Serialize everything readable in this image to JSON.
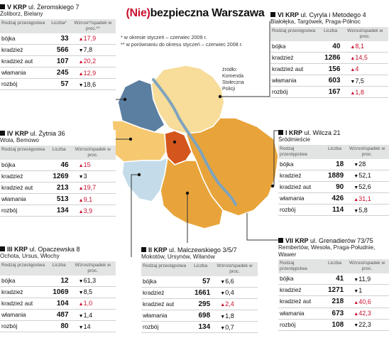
{
  "title_prefix": "(Nie)",
  "title_rest": "bezpieczna Warszawa",
  "notes": [
    "* w okresie styczeń – czerwiec 2009 r.",
    "** w porównaniu do okresu styczeń – czerwiec 2008 r."
  ],
  "source": [
    "źródło:",
    "Komenda",
    "Stołeczna",
    "Policji"
  ],
  "headers": {
    "type": "Rodzaj przestępstwa",
    "count": "Liczba*",
    "count_plain": "Liczba",
    "change": "Wzrost*/spadek w proc.**",
    "change_plain": "Wzrost/spadek w proc."
  },
  "colors": {
    "v_krp": "#5b7fa0",
    "vi_krp": "#f7dc9a",
    "iv_krp": "#f6c870",
    "i_krp": "#d4561c",
    "iii_krp": "#c4dcea",
    "ii_krp": "#e8a43a",
    "vii_krp": "#e8a43a",
    "vistula": "#7ea3bd",
    "increase": "#c8102e"
  },
  "panels": [
    {
      "key": "v",
      "district": "V KRP",
      "address": "ul. Żeromskiego 7",
      "areas": "Żoliborz, Bielany",
      "rows": [
        {
          "type": "bójka",
          "count": "33",
          "dir": "up",
          "change": "17,9"
        },
        {
          "type": "kradzież",
          "count": "566",
          "dir": "dn",
          "change": "7,8"
        },
        {
          "type": "kradzież aut",
          "count": "107",
          "dir": "up",
          "change": "20,2"
        },
        {
          "type": "włamania",
          "count": "245",
          "dir": "up",
          "change": "12,9"
        },
        {
          "type": "rozbój",
          "count": "57",
          "dir": "dn",
          "change": "18,6"
        }
      ]
    },
    {
      "key": "vi",
      "district": "VI KRP",
      "address": "ul. Cyryla i Metodego 4",
      "areas": "Białołęka, Targówek, Praga-Północ",
      "rows": [
        {
          "type": "bójka",
          "count": "40",
          "dir": "up",
          "change": "8,1"
        },
        {
          "type": "kradzież",
          "count": "1286",
          "dir": "up",
          "change": "14,5"
        },
        {
          "type": "kradzież aut",
          "count": "156",
          "dir": "up",
          "change": "4"
        },
        {
          "type": "włamania",
          "count": "603",
          "dir": "dn",
          "change": "7,5"
        },
        {
          "type": "rozbój",
          "count": "167",
          "dir": "up",
          "change": "1,8"
        }
      ]
    },
    {
      "key": "iv",
      "district": "IV KRP",
      "address": "ul. Żytnia 36",
      "areas": "Wola, Bemowo",
      "rows": [
        {
          "type": "bójka",
          "count": "46",
          "dir": "up",
          "change": "15"
        },
        {
          "type": "kradzież",
          "count": "1269",
          "dir": "dn",
          "change": "3"
        },
        {
          "type": "kradzież aut",
          "count": "213",
          "dir": "up",
          "change": "19,7"
        },
        {
          "type": "włamania",
          "count": "513",
          "dir": "up",
          "change": "9,1"
        },
        {
          "type": "rozbój",
          "count": "134",
          "dir": "up",
          "change": "3,9"
        }
      ]
    },
    {
      "key": "i",
      "district": "I KRP",
      "address": "ul. Wilcza 21",
      "areas": "Śródmieście",
      "rows": [
        {
          "type": "bójka",
          "count": "18",
          "dir": "dn",
          "change": "28"
        },
        {
          "type": "kradzież",
          "count": "1889",
          "dir": "dn",
          "change": "52,1"
        },
        {
          "type": "kradzież aut",
          "count": "90",
          "dir": "dn",
          "change": "52,6"
        },
        {
          "type": "włamania",
          "count": "426",
          "dir": "up",
          "change": "31,1"
        },
        {
          "type": "rozbój",
          "count": "114",
          "dir": "dn",
          "change": "5,8"
        }
      ]
    },
    {
      "key": "iii",
      "district": "III KRP",
      "address": "ul. Opaczewska 8",
      "areas": "Ochota, Ursus, Włochy",
      "rows": [
        {
          "type": "bójka",
          "count": "12",
          "dir": "dn",
          "change": "61,3"
        },
        {
          "type": "kradzież",
          "count": "1069",
          "dir": "dn",
          "change": "8,5"
        },
        {
          "type": "kradzież aut",
          "count": "104",
          "dir": "up",
          "change": "1,0"
        },
        {
          "type": "włamania",
          "count": "487",
          "dir": "dn",
          "change": "1,4"
        },
        {
          "type": "rozbój",
          "count": "80",
          "dir": "dn",
          "change": "14"
        }
      ]
    },
    {
      "key": "ii",
      "district": "II KRP",
      "address": "ul. Malczewskiego 3/5/7",
      "areas": "Mokotów, Ursynów, Wilanów",
      "rows": [
        {
          "type": "bójka",
          "count": "57",
          "dir": "dn",
          "change": "6,6"
        },
        {
          "type": "kradzież",
          "count": "1661",
          "dir": "dn",
          "change": "0,4"
        },
        {
          "type": "kradzież aut",
          "count": "295",
          "dir": "up",
          "change": "2,4"
        },
        {
          "type": "włamania",
          "count": "698",
          "dir": "dn",
          "change": "1,8"
        },
        {
          "type": "rozbój",
          "count": "134",
          "dir": "dn",
          "change": "0,7"
        }
      ]
    },
    {
      "key": "vii",
      "district": "VII KRP",
      "address": "ul. Grenadierów 73/75",
      "areas": "Rembertów, Wesoła, Praga-Południe, Wawer",
      "rows": [
        {
          "type": "bójka",
          "count": "41",
          "dir": "dn",
          "change": "11,9"
        },
        {
          "type": "kradzież",
          "count": "1271",
          "dir": "dn",
          "change": "1"
        },
        {
          "type": "kradzież aut",
          "count": "218",
          "dir": "up",
          "change": "40,6"
        },
        {
          "type": "włamania",
          "count": "673",
          "dir": "up",
          "change": "42,3"
        },
        {
          "type": "rozbój",
          "count": "108",
          "dir": "dn",
          "change": "22,3"
        }
      ]
    }
  ]
}
